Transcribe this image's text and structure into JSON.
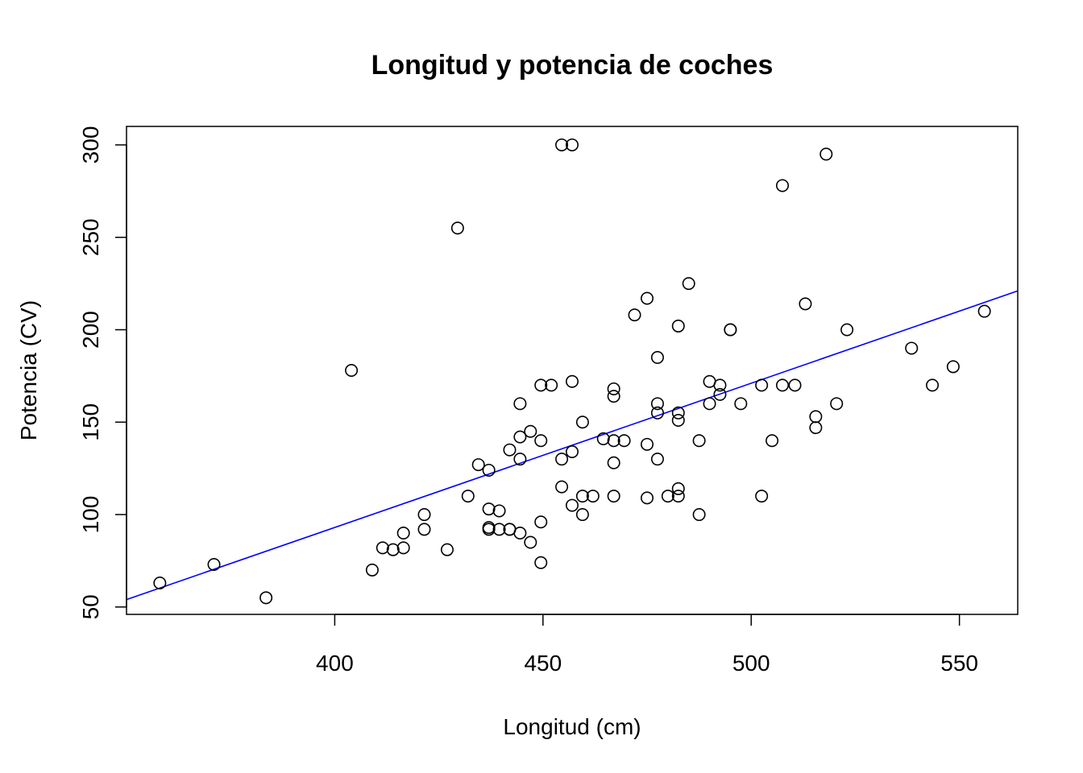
{
  "chart_data": {
    "type": "scatter",
    "title": "Longitud y potencia de coches",
    "xlabel": "Longitud (cm)",
    "ylabel": "Potencia (CV)",
    "xlim": [
      350,
      564
    ],
    "ylim": [
      46,
      310
    ],
    "xticks": [
      400,
      450,
      500,
      550
    ],
    "yticks": [
      50,
      100,
      150,
      200,
      250,
      300
    ],
    "grid": false,
    "legend": "none",
    "point_color": "#000000",
    "fit_line": {
      "color": "#0000ff",
      "x": [
        350,
        564
      ],
      "y": [
        54,
        221
      ]
    },
    "points": [
      [
        358,
        63
      ],
      [
        371,
        73
      ],
      [
        383.5,
        55
      ],
      [
        404,
        178
      ],
      [
        409,
        70
      ],
      [
        411.5,
        82
      ],
      [
        414,
        81
      ],
      [
        416.5,
        82
      ],
      [
        416.5,
        90
      ],
      [
        421.5,
        92
      ],
      [
        421.5,
        100
      ],
      [
        427,
        81
      ],
      [
        429.5,
        255
      ],
      [
        432,
        110
      ],
      [
        434.5,
        127
      ],
      [
        437,
        124
      ],
      [
        437,
        103
      ],
      [
        437,
        93
      ],
      [
        437,
        92
      ],
      [
        439.5,
        102
      ],
      [
        439.5,
        92
      ],
      [
        442,
        92
      ],
      [
        442,
        92
      ],
      [
        442,
        135
      ],
      [
        444.5,
        160
      ],
      [
        444.5,
        142
      ],
      [
        444.5,
        130
      ],
      [
        444.5,
        90
      ],
      [
        447,
        145
      ],
      [
        447,
        85
      ],
      [
        449.5,
        170
      ],
      [
        449.5,
        140
      ],
      [
        449.5,
        96
      ],
      [
        449.5,
        74
      ],
      [
        452,
        170
      ],
      [
        454.5,
        300
      ],
      [
        454.5,
        130
      ],
      [
        454.5,
        115
      ],
      [
        457,
        300
      ],
      [
        457,
        172
      ],
      [
        457,
        134
      ],
      [
        457,
        105
      ],
      [
        459.5,
        150
      ],
      [
        459.5,
        110
      ],
      [
        459.5,
        100
      ],
      [
        462,
        110
      ],
      [
        464.5,
        141
      ],
      [
        467,
        168
      ],
      [
        467,
        164
      ],
      [
        467,
        140
      ],
      [
        467,
        128
      ],
      [
        467,
        110
      ],
      [
        469.5,
        140
      ],
      [
        472,
        208
      ],
      [
        475,
        217
      ],
      [
        475,
        138
      ],
      [
        475,
        109
      ],
      [
        477.5,
        185
      ],
      [
        477.5,
        160
      ],
      [
        477.5,
        155
      ],
      [
        477.5,
        130
      ],
      [
        480,
        110
      ],
      [
        482.5,
        202
      ],
      [
        482.5,
        155
      ],
      [
        482.5,
        151
      ],
      [
        482.5,
        114
      ],
      [
        482.5,
        110
      ],
      [
        485,
        225
      ],
      [
        487.5,
        140
      ],
      [
        487.5,
        100
      ],
      [
        490,
        172
      ],
      [
        490,
        160
      ],
      [
        492.5,
        170
      ],
      [
        492.5,
        165
      ],
      [
        495,
        200
      ],
      [
        495,
        200
      ],
      [
        497.5,
        160
      ],
      [
        502.5,
        170
      ],
      [
        502.5,
        110
      ],
      [
        505,
        140
      ],
      [
        507.5,
        278
      ],
      [
        507.5,
        170
      ],
      [
        510.5,
        170
      ],
      [
        513,
        214
      ],
      [
        515.5,
        153
      ],
      [
        515.5,
        147
      ],
      [
        518,
        295
      ],
      [
        520.5,
        160
      ],
      [
        523,
        200
      ],
      [
        538.5,
        190
      ],
      [
        543.5,
        170
      ],
      [
        548.5,
        180
      ],
      [
        556,
        210
      ]
    ]
  }
}
